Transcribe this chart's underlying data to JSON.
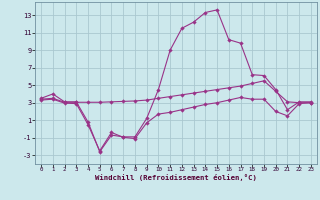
{
  "xlabel": "Windchill (Refroidissement éolien,°C)",
  "bg_color": "#cce8ec",
  "grid_color": "#aac8d0",
  "line_color": "#993388",
  "xlim_min": -0.5,
  "xlim_max": 23.5,
  "ylim_min": -4,
  "ylim_max": 14.5,
  "yticks": [
    -3,
    -1,
    1,
    3,
    5,
    7,
    9,
    11,
    13
  ],
  "xticks": [
    0,
    1,
    2,
    3,
    4,
    5,
    6,
    7,
    8,
    9,
    10,
    11,
    12,
    13,
    14,
    15,
    16,
    17,
    18,
    19,
    20,
    21,
    22,
    23
  ],
  "s1_x": [
    0,
    1,
    2,
    3,
    4,
    5,
    6,
    7,
    8,
    9,
    10,
    11,
    12,
    13,
    14,
    15,
    16,
    17,
    18,
    19,
    20,
    21,
    22,
    23
  ],
  "s1_y": [
    3.5,
    4.0,
    3.1,
    3.1,
    0.8,
    -2.6,
    -0.7,
    -0.9,
    -0.9,
    1.2,
    4.5,
    9.0,
    11.5,
    12.2,
    13.3,
    13.6,
    10.2,
    9.8,
    6.2,
    6.1,
    4.5,
    2.2,
    3.1,
    3.1
  ],
  "s2_x": [
    0,
    1,
    2,
    3,
    4,
    5,
    6,
    7,
    8,
    9,
    10,
    11,
    12,
    13,
    14,
    15,
    16,
    17,
    18,
    19,
    20,
    21,
    22,
    23
  ],
  "s2_y": [
    3.4,
    3.5,
    3.05,
    3.05,
    3.05,
    3.05,
    3.1,
    3.15,
    3.2,
    3.3,
    3.5,
    3.7,
    3.9,
    4.1,
    4.3,
    4.5,
    4.7,
    4.9,
    5.2,
    5.5,
    4.3,
    3.1,
    3.0,
    3.0
  ],
  "s3_x": [
    0,
    1,
    2,
    3,
    4,
    5,
    6,
    7,
    8,
    9,
    10,
    11,
    12,
    13,
    14,
    15,
    16,
    17,
    18,
    19,
    20,
    21,
    22,
    23
  ],
  "s3_y": [
    3.3,
    3.4,
    2.95,
    2.9,
    0.5,
    -2.5,
    -0.4,
    -0.95,
    -1.1,
    0.7,
    1.7,
    1.9,
    2.2,
    2.5,
    2.8,
    3.0,
    3.3,
    3.6,
    3.4,
    3.4,
    2.0,
    1.5,
    2.9,
    3.0
  ]
}
